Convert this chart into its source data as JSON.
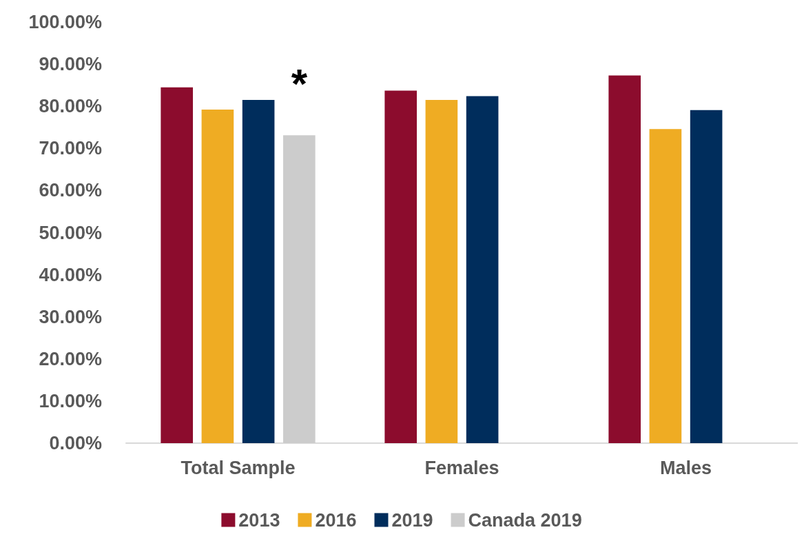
{
  "chart_data": {
    "type": "bar",
    "categories": [
      "Total Sample",
      "Females",
      "Males"
    ],
    "series": [
      {
        "name": "2013",
        "color": "#8c0c2d",
        "values": [
          84.5,
          83.7,
          87.3
        ]
      },
      {
        "name": "2016",
        "color": "#efac23",
        "values": [
          79.2,
          81.5,
          74.6
        ]
      },
      {
        "name": "2019",
        "color": "#002d5c",
        "values": [
          81.5,
          82.4,
          79.1
        ]
      },
      {
        "name": "Canada 2019",
        "color": "#cccccc",
        "values": [
          73.1,
          null,
          null
        ]
      }
    ],
    "ylim": [
      0,
      100
    ],
    "yticks": [
      {
        "value": 0,
        "label": "0.00%"
      },
      {
        "value": 10,
        "label": "10.00%"
      },
      {
        "value": 20,
        "label": "20.00%"
      },
      {
        "value": 30,
        "label": "30.00%"
      },
      {
        "value": 40,
        "label": "40.00%"
      },
      {
        "value": 50,
        "label": "50.00%"
      },
      {
        "value": 60,
        "label": "60.00%"
      },
      {
        "value": 70,
        "label": "70.00%"
      },
      {
        "value": 80,
        "label": "80.00%"
      },
      {
        "value": 90,
        "label": "90.00%"
      },
      {
        "value": 100,
        "label": "100.00%"
      }
    ],
    "annotations": [
      "*"
    ],
    "grid": false,
    "legend": "bottom"
  }
}
